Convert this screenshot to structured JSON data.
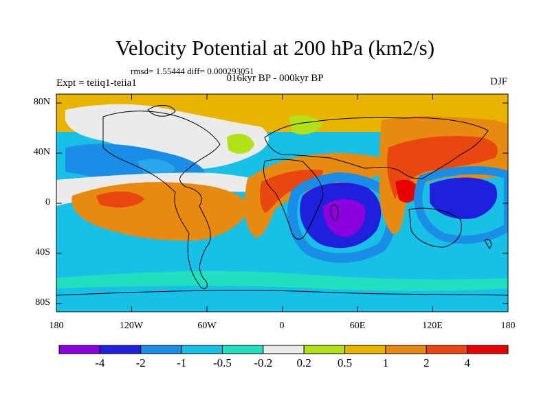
{
  "title": "Velocity Potential at 200 hPa (km2/s)",
  "stats": "rmsd= 1.55444 diff= 0.000293051",
  "period": "016kyr BP - 000kyr BP",
  "experiment": "Expt = teiiq1-teiia1",
  "season": "DJF",
  "lat_ticks": [
    "80N",
    "40N",
    "0",
    "40S",
    "80S"
  ],
  "lon_ticks": [
    "180",
    "120W",
    "60W",
    "0",
    "60E",
    "120E",
    "180"
  ],
  "colorbar": {
    "labels": [
      "-4",
      "-2",
      "-1",
      "-0.5",
      "-0.2",
      "0.2",
      "0.5",
      "1",
      "2",
      "4"
    ],
    "colors": [
      "#8c00e0",
      "#2020dc",
      "#1a8ee6",
      "#18c0e8",
      "#20e0c0",
      "#ebebeb",
      "#b4e018",
      "#e8b400",
      "#e88a10",
      "#e84810",
      "#e80000"
    ]
  }
}
